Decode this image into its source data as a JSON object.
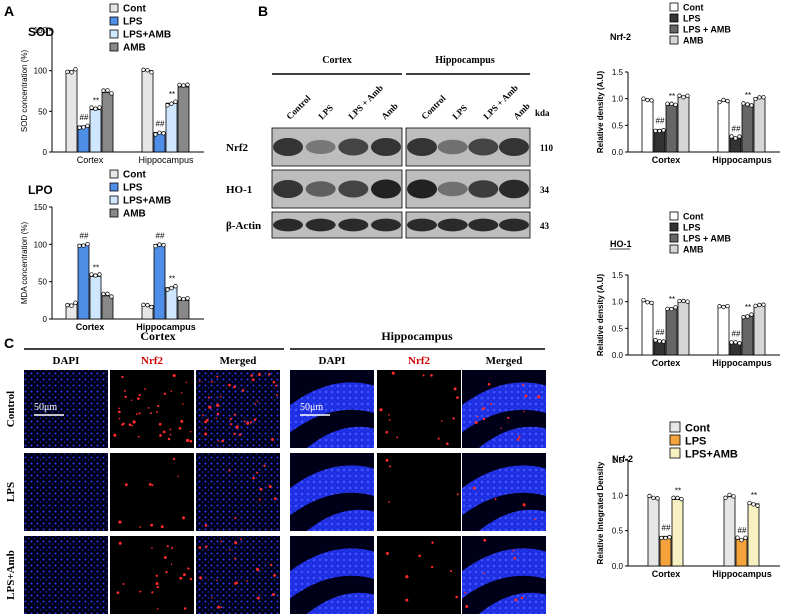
{
  "panels": {
    "A": "A",
    "B": "B",
    "C": "C"
  },
  "colors": {
    "cont": "#e6e6e6",
    "lps": "#4f8ee6",
    "lpsamb": "#cfe6ff",
    "amb": "#888888",
    "lps_dark": "#333333",
    "lpsamb_dark": "#666666",
    "amb_light": "#d6d6d6",
    "lps_orange": "#f4a23c",
    "lpsamb_cream": "#f7f0c2"
  },
  "western": {
    "group_labels": [
      "Cortex",
      "Hippocampus"
    ],
    "lane_labels": [
      "Control",
      "LPS",
      "LPS + Amb",
      "Amb",
      "Control",
      "LPS",
      "LPS + Amb",
      "Amb"
    ],
    "kda_label": "kda",
    "rows": [
      {
        "name": "Nrf2",
        "kda": "110"
      },
      {
        "name": "HO-1",
        "kda": "34"
      },
      {
        "name": "β-Actin",
        "kda": "43"
      }
    ]
  },
  "microscopy": {
    "group_labels": [
      "Cortex",
      "Hippocampus"
    ],
    "col_labels": [
      "DAPI",
      "Nrf2",
      "Merged",
      "DAPI",
      "Nrf2",
      "Merged"
    ],
    "row_labels": [
      "Control",
      "LPS",
      "LPS+Amb"
    ],
    "scale_bar": "50μm",
    "nrf2_signal": [
      [
        1.0,
        0.25,
        0.5
      ],
      [
        0.35,
        0.1,
        0.2
      ]
    ]
  },
  "chart_data": [
    {
      "id": "sod",
      "type": "bar",
      "title": "SOD",
      "ylabel": "SOD concentration (%)",
      "categories": [
        "Cortex",
        "Hippocampus"
      ],
      "ylim": [
        0,
        150
      ],
      "yticks": [
        0,
        50,
        100,
        150
      ],
      "series": [
        {
          "name": "Cont",
          "values": [
            100,
            100
          ],
          "color": "#e6e6e6",
          "ann": [
            "",
            ""
          ]
        },
        {
          "name": "LPS",
          "values": [
            32,
            24
          ],
          "color": "#4f8ee6",
          "ann": [
            "##",
            "##"
          ]
        },
        {
          "name": "LPS+AMB",
          "values": [
            52,
            60
          ],
          "color": "#cfe6ff",
          "ann": [
            "**",
            "**"
          ]
        },
        {
          "name": "AMB",
          "values": [
            73,
            80
          ],
          "color": "#888888",
          "ann": [
            "",
            ""
          ]
        }
      ]
    },
    {
      "id": "lpo",
      "type": "bar",
      "title": "LPO",
      "ylabel": "MDA concentration (%)",
      "categories": [
        "Cortex",
        "Hippocampus"
      ],
      "ylim": [
        0,
        150
      ],
      "yticks": [
        0,
        50,
        100,
        150
      ],
      "series": [
        {
          "name": "Cont",
          "values": [
            20,
            18
          ],
          "color": "#e6e6e6",
          "ann": [
            "",
            ""
          ]
        },
        {
          "name": "LPS",
          "values": [
            100,
            100
          ],
          "color": "#4f8ee6",
          "ann": [
            "##",
            "##"
          ]
        },
        {
          "name": "LPS+AMB",
          "values": [
            57,
            42
          ],
          "color": "#cfe6ff",
          "ann": [
            "**",
            "**"
          ]
        },
        {
          "name": "AMB",
          "values": [
            31,
            25
          ],
          "color": "#888888",
          "ann": [
            "",
            ""
          ]
        }
      ]
    },
    {
      "id": "nrf2wb",
      "type": "bar",
      "title": "Nrf-2",
      "ylabel": "Relative density (A.U)",
      "categories": [
        "Cortex",
        "Hippocampus"
      ],
      "ylim": [
        0,
        1.5
      ],
      "yticks": [
        0.0,
        0.5,
        1.0,
        1.5
      ],
      "series": [
        {
          "name": "Cont",
          "values": [
            0.98,
            0.95
          ],
          "color": "#ffffff",
          "ann": [
            "",
            ""
          ]
        },
        {
          "name": "LPS",
          "values": [
            0.42,
            0.27
          ],
          "color": "#333333",
          "ann": [
            "##",
            "##"
          ]
        },
        {
          "name": "LPS + AMB",
          "values": [
            0.88,
            0.9
          ],
          "color": "#666666",
          "ann": [
            "**",
            "**"
          ]
        },
        {
          "name": "AMB",
          "values": [
            1.05,
            1.02
          ],
          "color": "#d6d6d6",
          "ann": [
            "",
            ""
          ]
        }
      ]
    },
    {
      "id": "ho1wb",
      "type": "bar",
      "title": "HO-1",
      "ylabel": "Relative density (A.U)",
      "categories": [
        "Cortex",
        "Hippocampus"
      ],
      "ylim": [
        0,
        1.5
      ],
      "yticks": [
        0.0,
        0.5,
        1.0,
        1.5
      ],
      "series": [
        {
          "name": "Cont",
          "values": [
            1.0,
            0.92
          ],
          "color": "#ffffff",
          "ann": [
            "",
            ""
          ]
        },
        {
          "name": "LPS",
          "values": [
            0.26,
            0.23
          ],
          "color": "#333333",
          "ann": [
            "##",
            "##"
          ]
        },
        {
          "name": "LPS + AMB",
          "values": [
            0.88,
            0.73
          ],
          "color": "#666666",
          "ann": [
            "**",
            "**"
          ]
        },
        {
          "name": "AMB",
          "values": [
            1.0,
            0.93
          ],
          "color": "#d6d6d6",
          "ann": [
            "",
            ""
          ]
        }
      ]
    },
    {
      "id": "nrf2if",
      "type": "bar",
      "title": "Nrf-2",
      "ylabel": "Relative Integrated Density",
      "categories": [
        "Cortex",
        "Hippocampus"
      ],
      "ylim": [
        0,
        1.5
      ],
      "yticks": [
        0.0,
        0.5,
        1.0,
        1.5
      ],
      "series": [
        {
          "name": "Cont",
          "values": [
            0.97,
            0.98
          ],
          "color": "#e6e6e6",
          "ann": [
            "",
            ""
          ]
        },
        {
          "name": "LPS",
          "values": [
            0.42,
            0.38
          ],
          "color": "#f4a23c",
          "ann": [
            "##",
            "##"
          ]
        },
        {
          "name": "LPS+AMB",
          "values": [
            0.94,
            0.88
          ],
          "color": "#f7f0c2",
          "ann": [
            "**",
            "**"
          ]
        }
      ]
    }
  ]
}
